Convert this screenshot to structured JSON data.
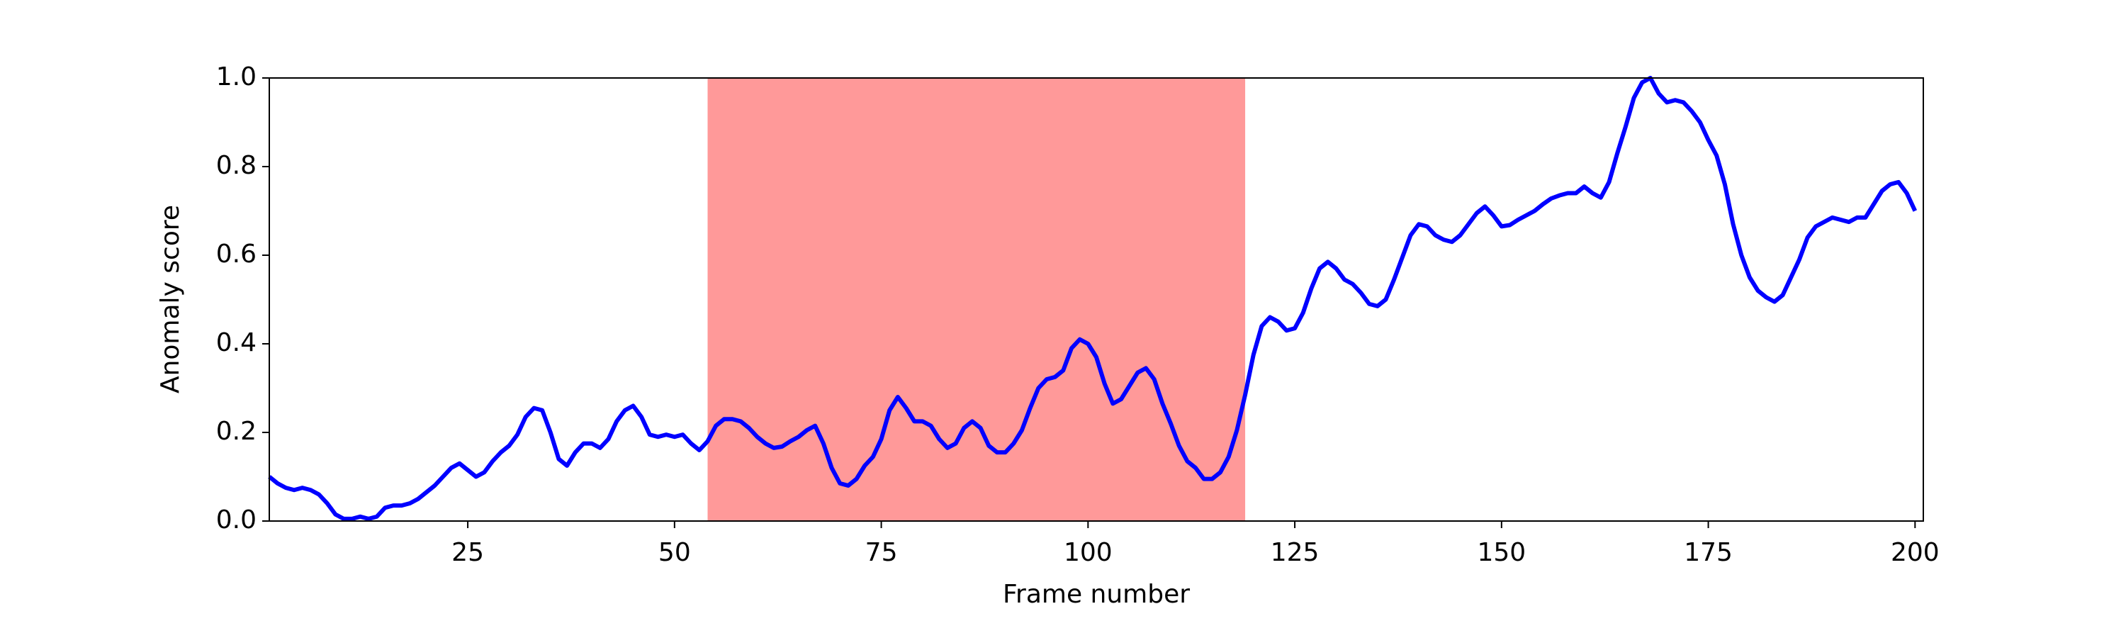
{
  "chart_data": {
    "type": "line",
    "xlabel": "Frame number",
    "ylabel": "Anomaly score",
    "xlim": [
      1,
      201
    ],
    "ylim": [
      0,
      1
    ],
    "xticks": [
      25,
      50,
      75,
      100,
      125,
      150,
      175,
      200
    ],
    "yticks": [
      {
        "value": 0,
        "label": "0.0"
      },
      0.2,
      0.4,
      0.6,
      0.8,
      {
        "value": 1,
        "label": "1.0"
      }
    ],
    "shaded_span": {
      "x": [
        54,
        119
      ],
      "color": "#ff9999"
    },
    "x": [
      1,
      2,
      3,
      4,
      5,
      6,
      7,
      8,
      9,
      10,
      11,
      12,
      13,
      14,
      15,
      16,
      17,
      18,
      19,
      20,
      21,
      22,
      23,
      24,
      25,
      26,
      27,
      28,
      29,
      30,
      31,
      32,
      33,
      34,
      35,
      36,
      37,
      38,
      39,
      40,
      41,
      42,
      43,
      44,
      45,
      46,
      47,
      48,
      49,
      50,
      51,
      52,
      53,
      54,
      55,
      56,
      57,
      58,
      59,
      60,
      61,
      62,
      63,
      64,
      65,
      66,
      67,
      68,
      69,
      70,
      71,
      72,
      73,
      74,
      75,
      76,
      77,
      78,
      79,
      80,
      81,
      82,
      83,
      84,
      85,
      86,
      87,
      88,
      89,
      90,
      91,
      92,
      93,
      94,
      95,
      96,
      97,
      98,
      99,
      100,
      101,
      102,
      103,
      104,
      105,
      106,
      107,
      108,
      109,
      110,
      111,
      112,
      113,
      114,
      115,
      116,
      117,
      118,
      119,
      120,
      121,
      122,
      123,
      124,
      125,
      126,
      127,
      128,
      129,
      130,
      131,
      132,
      133,
      134,
      135,
      136,
      137,
      138,
      139,
      140,
      141,
      142,
      143,
      144,
      145,
      146,
      147,
      148,
      149,
      150,
      151,
      152,
      153,
      154,
      155,
      156,
      157,
      158,
      159,
      160,
      161,
      162,
      163,
      164,
      165,
      166,
      167,
      168,
      169,
      170,
      171,
      172,
      173,
      174,
      175,
      176,
      177,
      178,
      179,
      180,
      181,
      182,
      183,
      184,
      185,
      186,
      187,
      188,
      189,
      190,
      191,
      192,
      193,
      194,
      195,
      196,
      197,
      198,
      199,
      200
    ],
    "series": [
      {
        "color": "#0000ff",
        "values": [
          0.1,
          0.085,
          0.075,
          0.07,
          0.075,
          0.07,
          0.06,
          0.04,
          0.015,
          0.005,
          0.005,
          0.01,
          0.005,
          0.01,
          0.03,
          0.035,
          0.035,
          0.04,
          0.05,
          0.065,
          0.08,
          0.1,
          0.12,
          0.13,
          0.115,
          0.1,
          0.11,
          0.135,
          0.155,
          0.17,
          0.195,
          0.235,
          0.255,
          0.25,
          0.2,
          0.14,
          0.125,
          0.155,
          0.175,
          0.175,
          0.165,
          0.185,
          0.225,
          0.25,
          0.26,
          0.235,
          0.195,
          0.19,
          0.195,
          0.19,
          0.195,
          0.175,
          0.16,
          0.18,
          0.215,
          0.23,
          0.23,
          0.225,
          0.21,
          0.19,
          0.175,
          0.165,
          0.168,
          0.18,
          0.19,
          0.205,
          0.215,
          0.175,
          0.12,
          0.085,
          0.08,
          0.095,
          0.125,
          0.145,
          0.185,
          0.25,
          0.28,
          0.255,
          0.225,
          0.225,
          0.215,
          0.185,
          0.165,
          0.175,
          0.21,
          0.225,
          0.21,
          0.17,
          0.155,
          0.155,
          0.175,
          0.205,
          0.255,
          0.3,
          0.32,
          0.325,
          0.34,
          0.39,
          0.41,
          0.4,
          0.37,
          0.31,
          0.265,
          0.275,
          0.305,
          0.335,
          0.345,
          0.32,
          0.265,
          0.22,
          0.17,
          0.135,
          0.12,
          0.095,
          0.095,
          0.11,
          0.145,
          0.205,
          0.285,
          0.375,
          0.44,
          0.46,
          0.45,
          0.43,
          0.435,
          0.47,
          0.525,
          0.57,
          0.585,
          0.57,
          0.545,
          0.535,
          0.515,
          0.49,
          0.485,
          0.5,
          0.545,
          0.595,
          0.645,
          0.67,
          0.665,
          0.645,
          0.635,
          0.63,
          0.645,
          0.67,
          0.695,
          0.71,
          0.69,
          0.665,
          0.668,
          0.68,
          0.69,
          0.7,
          0.715,
          0.728,
          0.735,
          0.74,
          0.74,
          0.755,
          0.74,
          0.73,
          0.765,
          0.83,
          0.89,
          0.955,
          0.99,
          1.0,
          0.965,
          0.945,
          0.95,
          0.945,
          0.925,
          0.9,
          0.86,
          0.825,
          0.76,
          0.67,
          0.6,
          0.55,
          0.52,
          0.505,
          0.495,
          0.51,
          0.55,
          0.59,
          0.64,
          0.665,
          0.675,
          0.685,
          0.68,
          0.675,
          0.685,
          0.685,
          0.715,
          0.745,
          0.76,
          0.765,
          0.74,
          0.7
        ]
      }
    ]
  }
}
